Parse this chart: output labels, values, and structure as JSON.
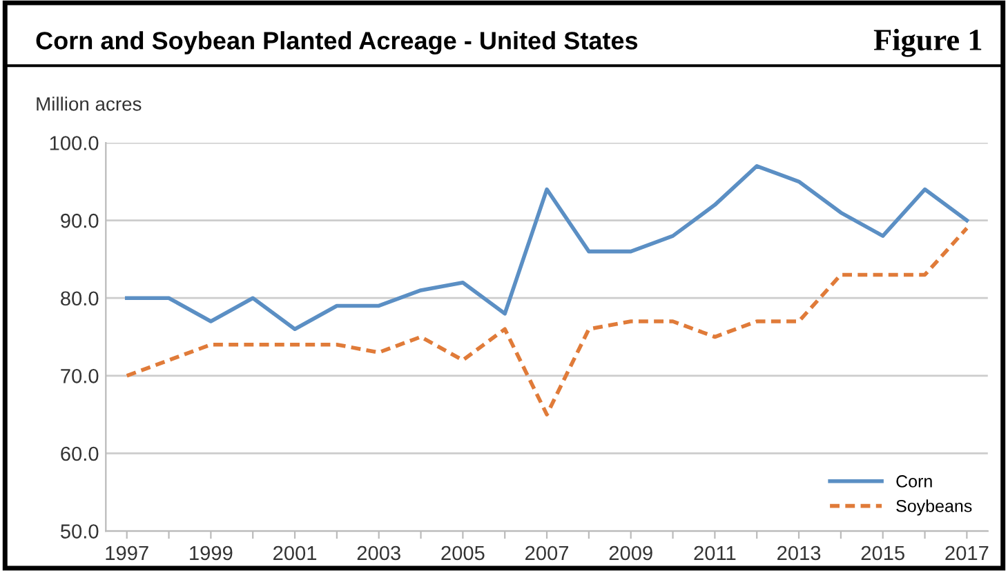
{
  "chart_data": {
    "type": "line",
    "title": "Corn and Soybean Planted Acreage - United States",
    "ylabel": "Million acres",
    "annotations": [
      "Figure 1"
    ],
    "x": [
      1997,
      1998,
      1999,
      2000,
      2001,
      2002,
      2003,
      2004,
      2005,
      2006,
      2007,
      2008,
      2009,
      2010,
      2011,
      2012,
      2013,
      2014,
      2015,
      2016,
      2017
    ],
    "series": [
      {
        "name": "Corn",
        "color": "#5b8fc4",
        "line_style": "solid",
        "values": [
          80,
          80,
          77,
          80,
          76,
          79,
          79,
          81,
          82,
          78,
          94,
          86,
          86,
          88,
          92,
          97,
          95,
          91,
          88,
          94,
          90
        ]
      },
      {
        "name": "Soybeans",
        "color": "#e07b39",
        "line_style": "dashed",
        "values": [
          70,
          72,
          74,
          74,
          74,
          74,
          73,
          75,
          72,
          76,
          65,
          76,
          77,
          77,
          75,
          77,
          77,
          83,
          83,
          83,
          89
        ]
      }
    ],
    "xlim": [
      1996.5,
      2017.5
    ],
    "xticks": [
      1997,
      {
        "value": 1998,
        "label": null
      },
      1999,
      {
        "value": 2000,
        "label": null
      },
      2001,
      {
        "value": 2002,
        "label": null
      },
      2003,
      {
        "value": 2004,
        "label": null
      },
      2005,
      {
        "value": 2006,
        "label": null
      },
      2007,
      {
        "value": 2008,
        "label": null
      },
      2009,
      {
        "value": 2010,
        "label": null
      },
      2011,
      {
        "value": 2012,
        "label": null
      },
      2013,
      {
        "value": 2014,
        "label": null
      },
      2015,
      {
        "value": 2016,
        "label": null
      },
      2017
    ],
    "ylim": [
      50,
      100
    ],
    "yticks": [
      {
        "value": 50,
        "label": "50.0"
      },
      {
        "value": 60,
        "label": "60.0"
      },
      {
        "value": 70,
        "label": "70.0"
      },
      {
        "value": 80,
        "label": "80.0"
      },
      {
        "value": 90,
        "label": "90.0"
      },
      {
        "value": 100,
        "label": "100.0"
      }
    ],
    "grid": "y",
    "legend": "bottom right",
    "marker": "none"
  }
}
